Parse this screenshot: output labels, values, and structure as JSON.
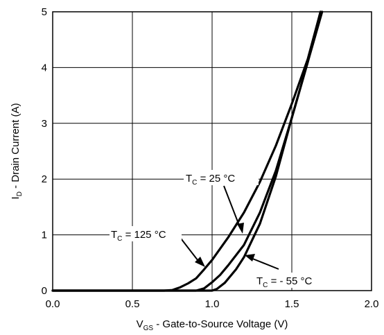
{
  "chart_data": {
    "type": "line",
    "xlabel_main": "V",
    "xlabel_sub": "GS",
    "xlabel_rest": " - Gate-to-Source Voltage (V)",
    "ylabel_main": "I",
    "ylabel_sub": "D",
    "ylabel_rest": " - Drain Current (A)",
    "xlim": [
      0.0,
      2.0
    ],
    "ylim": [
      0,
      5
    ],
    "x_ticks": [
      "0.0",
      "0.5",
      "1.0",
      "1.5",
      "2.0"
    ],
    "y_ticks": [
      "0",
      "1",
      "2",
      "3",
      "4",
      "5"
    ],
    "grid": true,
    "series": [
      {
        "name_main": "T",
        "name_sub": "C",
        "name_rest": " = 125 °C",
        "points": [
          [
            0.0,
            0.0
          ],
          [
            0.7,
            0.0
          ],
          [
            0.75,
            0.01
          ],
          [
            0.8,
            0.06
          ],
          [
            0.85,
            0.13
          ],
          [
            0.9,
            0.22
          ],
          [
            0.95,
            0.38
          ],
          [
            1.0,
            0.55
          ],
          [
            1.1,
            0.95
          ],
          [
            1.2,
            1.4
          ],
          [
            1.3,
            1.95
          ],
          [
            1.4,
            2.6
          ],
          [
            1.5,
            3.35
          ],
          [
            1.6,
            4.15
          ],
          [
            1.68,
            5.0
          ]
        ]
      },
      {
        "name_main": "T",
        "name_sub": "C",
        "name_rest": " = 25 °C",
        "points": [
          [
            0.0,
            0.0
          ],
          [
            0.9,
            0.0
          ],
          [
            0.95,
            0.04
          ],
          [
            1.0,
            0.15
          ],
          [
            1.05,
            0.28
          ],
          [
            1.1,
            0.45
          ],
          [
            1.2,
            0.82
          ],
          [
            1.3,
            1.4
          ],
          [
            1.4,
            2.15
          ],
          [
            1.5,
            3.1
          ],
          [
            1.6,
            4.1
          ],
          [
            1.68,
            5.0
          ]
        ]
      },
      {
        "name_main": "T",
        "name_sub": "C",
        "name_rest": " = - 55 °C",
        "points": [
          [
            0.0,
            0.0
          ],
          [
            1.0,
            0.0
          ],
          [
            1.03,
            0.03
          ],
          [
            1.08,
            0.14
          ],
          [
            1.15,
            0.38
          ],
          [
            1.2,
            0.6
          ],
          [
            1.3,
            1.2
          ],
          [
            1.4,
            2.05
          ],
          [
            1.5,
            3.1
          ],
          [
            1.6,
            4.1
          ],
          [
            1.69,
            5.0
          ]
        ]
      }
    ]
  }
}
